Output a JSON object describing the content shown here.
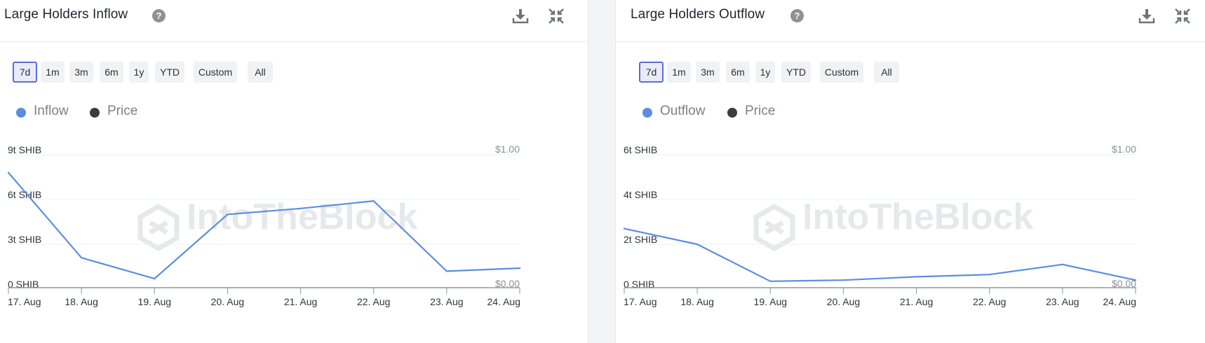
{
  "ranges": [
    "7d",
    "1m",
    "3m",
    "6m",
    "1y",
    "YTD",
    "Custom",
    "All"
  ],
  "active_range": "7d",
  "watermark": "IntoTheBlock",
  "icons": {
    "help": "help-circle-icon",
    "download": "download-icon",
    "collapse": "collapse-icon"
  },
  "colors": {
    "series": "#5b8ee0",
    "price": "#3a3d42",
    "active_border": "#5b6dd8"
  },
  "panels": [
    {
      "title": "Large Holders Inflow",
      "legend": [
        {
          "label": "Inflow",
          "color": "#5b8ee0"
        },
        {
          "label": "Price",
          "color": "#3a3d42"
        }
      ],
      "chart_data": {
        "type": "line",
        "title": "Large Holders Inflow",
        "x": [
          "17. Aug",
          "18. Aug",
          "19. Aug",
          "20. Aug",
          "21. Aug",
          "22. Aug",
          "23. Aug",
          "24. Aug"
        ],
        "series": [
          {
            "name": "Inflow",
            "axis": "left",
            "unit": "t SHIB",
            "values": [
              7.8,
              2.1,
              0.7,
              5.0,
              5.4,
              5.9,
              1.2,
              1.4
            ]
          }
        ],
        "y_ticks": [
          "9t SHIB",
          "6t SHIB",
          "3t SHIB",
          "0 SHIB"
        ],
        "y_max": 9,
        "y2_ticks": [
          "$1.00",
          "$0.00"
        ],
        "grid": true,
        "legend_position": "top-left"
      }
    },
    {
      "title": "Large Holders Outflow",
      "legend": [
        {
          "label": "Outflow",
          "color": "#5b8ee0"
        },
        {
          "label": "Price",
          "color": "#3a3d42"
        }
      ],
      "chart_data": {
        "type": "line",
        "title": "Large Holders Outflow",
        "x": [
          "17. Aug",
          "18. Aug",
          "19. Aug",
          "20. Aug",
          "21. Aug",
          "22. Aug",
          "23. Aug",
          "24. Aug"
        ],
        "series": [
          {
            "name": "Outflow",
            "axis": "left",
            "unit": "t SHIB",
            "values": [
              2.7,
              2.0,
              0.35,
              0.4,
              0.55,
              0.65,
              1.1,
              0.4
            ]
          }
        ],
        "y_ticks": [
          "6t SHIB",
          "4t SHIB",
          "2t SHIB",
          "0 SHIB"
        ],
        "y_max": 6,
        "y2_ticks": [
          "$1.00",
          "$0.00"
        ],
        "grid": true,
        "legend_position": "top-left"
      }
    }
  ]
}
